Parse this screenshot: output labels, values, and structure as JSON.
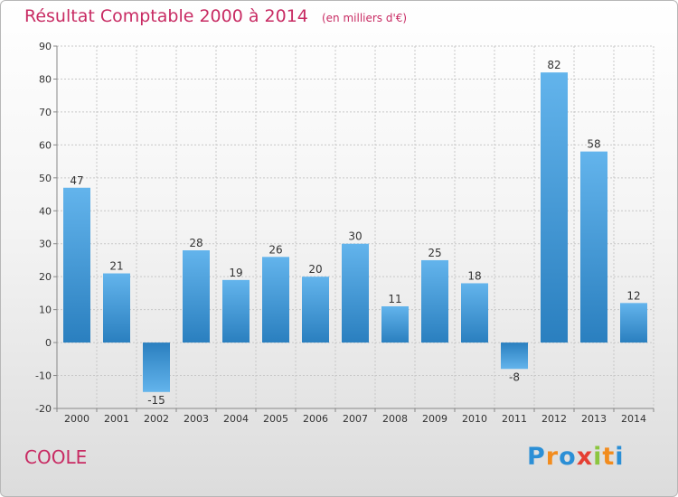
{
  "header": {
    "title": "Résultat Comptable 2000 à 2014",
    "subtitle": "(en milliers d'€)"
  },
  "footer": {
    "commune": "COOLE",
    "brand_letters": [
      "P",
      "r",
      "o",
      "x",
      "i",
      "t",
      "i"
    ],
    "brand_colors": [
      "#2b8fd6",
      "#f28c1e",
      "#2b8fd6",
      "#e53f33",
      "#8cc63f",
      "#f28c1e",
      "#2b8fd6"
    ]
  },
  "colors": {
    "title": "#c82b63",
    "bar_light": "#63b4ec",
    "bar_dark": "#2a7fbf",
    "grid": "#c8c8c8",
    "axis": "#888888"
  },
  "chart_data": {
    "type": "bar",
    "title": "Résultat Comptable 2000 à 2014",
    "subtitle": "(en milliers d'€)",
    "categories": [
      "2000",
      "2001",
      "2002",
      "2003",
      "2004",
      "2005",
      "2006",
      "2007",
      "2008",
      "2009",
      "2010",
      "2011",
      "2012",
      "2013",
      "2014"
    ],
    "values": [
      47,
      21,
      -15,
      28,
      19,
      26,
      20,
      30,
      11,
      25,
      18,
      -8,
      82,
      58,
      12
    ],
    "ylim": [
      -20,
      90
    ],
    "yticks": [
      -20,
      -10,
      0,
      10,
      20,
      30,
      40,
      50,
      60,
      70,
      80,
      90
    ],
    "grid": true,
    "legend": "none"
  }
}
